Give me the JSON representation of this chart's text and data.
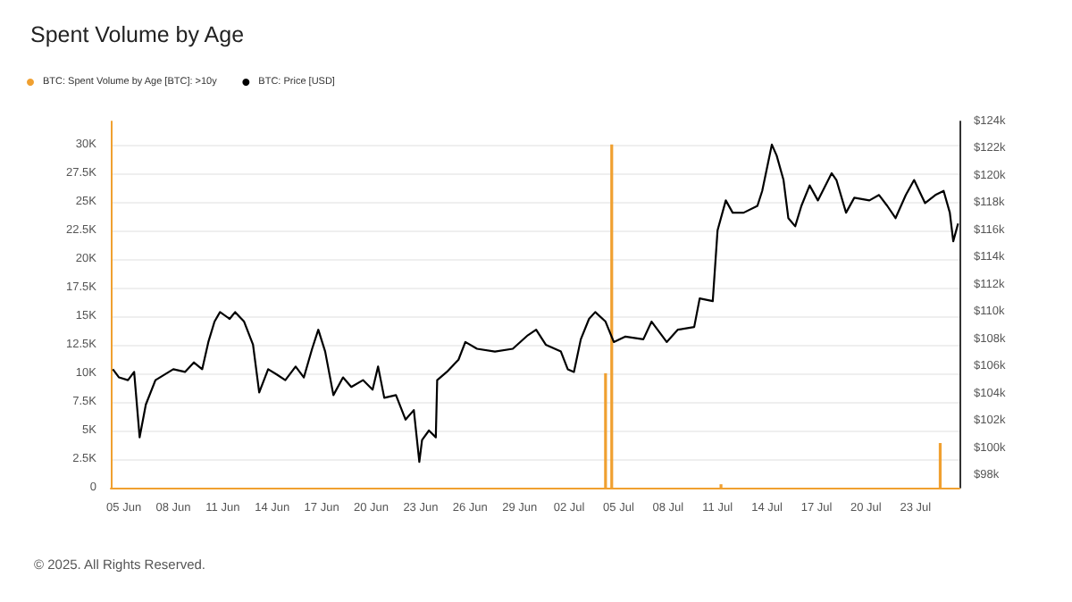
{
  "chart_data": {
    "type": "bar",
    "title": "Spent Volume by Age",
    "annotations": [
      "© 2025. All Rights Reserved."
    ],
    "legend": "top left",
    "grid": "y",
    "xlim": [
      "2025-06-04T05:00",
      "2025-07-25T16:00"
    ],
    "xticks": [
      {
        "value": "2025-06-05",
        "label": "05 Jun"
      },
      {
        "value": "2025-06-08",
        "label": "08 Jun"
      },
      {
        "value": "2025-06-11",
        "label": "11 Jun"
      },
      {
        "value": "2025-06-14",
        "label": "14 Jun"
      },
      {
        "value": "2025-06-17",
        "label": "17 Jun"
      },
      {
        "value": "2025-06-20",
        "label": "20 Jun"
      },
      {
        "value": "2025-06-23",
        "label": "23 Jun"
      },
      {
        "value": "2025-06-26",
        "label": "26 Jun"
      },
      {
        "value": "2025-06-29",
        "label": "29 Jun"
      },
      {
        "value": "2025-07-02",
        "label": "02 Jul"
      },
      {
        "value": "2025-07-05",
        "label": "05 Jul"
      },
      {
        "value": "2025-07-08",
        "label": "08 Jul"
      },
      {
        "value": "2025-07-11",
        "label": "11 Jul"
      },
      {
        "value": "2025-07-14",
        "label": "14 Jul"
      },
      {
        "value": "2025-07-17",
        "label": "17 Jul"
      },
      {
        "value": "2025-07-20",
        "label": "20 Jul"
      },
      {
        "value": "2025-07-23",
        "label": "23 Jul"
      }
    ],
    "ylim": [
      0,
      32000
    ],
    "yticks": [
      0,
      {
        "value": 2500,
        "label": "2.5K"
      },
      {
        "value": 5000,
        "label": "5K"
      },
      {
        "value": 7500,
        "label": "7.5K"
      },
      {
        "value": 10000,
        "label": "10K"
      },
      {
        "value": 12500,
        "label": "12.5K"
      },
      {
        "value": 15000,
        "label": "15K"
      },
      {
        "value": 17500,
        "label": "17.5K"
      },
      {
        "value": 20000,
        "label": "20K"
      },
      {
        "value": 22500,
        "label": "22.5K"
      },
      {
        "value": 25000,
        "label": "25K"
      },
      {
        "value": 27500,
        "label": "27.5K"
      },
      {
        "value": 30000,
        "label": "30K"
      }
    ],
    "y2lim": [
      97100,
      124000
    ],
    "y2ticks": [
      {
        "value": 98000,
        "label": "$98k"
      },
      {
        "value": 100000,
        "label": "$100k"
      },
      {
        "value": 102000,
        "label": "$102k"
      },
      {
        "value": 104000,
        "label": "$104k"
      },
      {
        "value": 106000,
        "label": "$106k"
      },
      {
        "value": 108000,
        "label": "$108k"
      },
      {
        "value": 110000,
        "label": "$110k"
      },
      {
        "value": 112000,
        "label": "$112k"
      },
      {
        "value": 114000,
        "label": "$114k"
      },
      {
        "value": 116000,
        "label": "$116k"
      },
      {
        "value": 118000,
        "label": "$118k"
      },
      {
        "value": 120000,
        "label": "$120k"
      },
      {
        "value": 122000,
        "label": "$122k"
      },
      {
        "value": 124000,
        "label": "$124k"
      }
    ],
    "series": [
      {
        "name": "BTC: Spent Volume by Age [BTC]: >10y",
        "color": "#f0a030",
        "x": [
          "2025-07-04T05:00",
          "2025-07-04T14:00",
          "2025-07-11T05:00",
          "2025-07-24T12:00"
        ],
        "values": [
          10000,
          30000,
          300,
          3900
        ]
      },
      {
        "name": "BTC: Price [USD]",
        "type": "line",
        "axis": "y2",
        "color": "#000000",
        "x": [
          "2025-06-04T08:00",
          "2025-06-04T17:00",
          "2025-06-05T06:00",
          "2025-06-05T15:00",
          "2025-06-05T23:00",
          "2025-06-06T08:00",
          "2025-06-06T22:00",
          "2025-06-08T00:00",
          "2025-06-08T17:00",
          "2025-06-09T06:00",
          "2025-06-09T18:00",
          "2025-06-10T03:00",
          "2025-06-10T12:00",
          "2025-06-10T20:00",
          "2025-06-11T10:00",
          "2025-06-11T18:00",
          "2025-06-12T07:00",
          "2025-06-12T20:00",
          "2025-06-13T05:00",
          "2025-06-13T18:00",
          "2025-06-14T07:00",
          "2025-06-14T19:00",
          "2025-06-15T10:00",
          "2025-06-15T22:00",
          "2025-06-16T10:00",
          "2025-06-16T19:00",
          "2025-06-17T05:00",
          "2025-06-17T17:00",
          "2025-06-18T07:00",
          "2025-06-18T19:00",
          "2025-06-19T12:00",
          "2025-06-20T02:00",
          "2025-06-20T10:00",
          "2025-06-20T19:00",
          "2025-06-21T12:00",
          "2025-06-22T02:00",
          "2025-06-22T14:00",
          "2025-06-22T22:00",
          "2025-06-23T02:00",
          "2025-06-23T12:00",
          "2025-06-23T22:00",
          "2025-06-24T00:00",
          "2025-06-24T14:00",
          "2025-06-25T07:00",
          "2025-06-25T17:00",
          "2025-06-26T10:00",
          "2025-06-27T12:00",
          "2025-06-28T14:00",
          "2025-06-29T12:00",
          "2025-06-30T00:00",
          "2025-06-30T14:00",
          "2025-07-01T12:00",
          "2025-07-01T22:00",
          "2025-07-02T07:00",
          "2025-07-02T17:00",
          "2025-07-03T05:00",
          "2025-07-03T14:00",
          "2025-07-04T05:00",
          "2025-07-04T17:00",
          "2025-07-05T10:00",
          "2025-07-06T12:00",
          "2025-07-07T00:00",
          "2025-07-07T22:00",
          "2025-07-08T14:00",
          "2025-07-09T14:00",
          "2025-07-09T22:00",
          "2025-07-10T17:00",
          "2025-07-11T00:00",
          "2025-07-11T12:00",
          "2025-07-11T22:00",
          "2025-07-12T14:00",
          "2025-07-13T10:00",
          "2025-07-13T17:00",
          "2025-07-14T07:00",
          "2025-07-14T14:00",
          "2025-07-15T00:00",
          "2025-07-15T07:00",
          "2025-07-15T17:00",
          "2025-07-16T02:00",
          "2025-07-16T14:00",
          "2025-07-17T02:00",
          "2025-07-17T22:00",
          "2025-07-18T05:00",
          "2025-07-18T19:00",
          "2025-07-19T07:00",
          "2025-07-20T05:00",
          "2025-07-20T19:00",
          "2025-07-21T07:00",
          "2025-07-21T19:00",
          "2025-07-22T10:00",
          "2025-07-22T22:00",
          "2025-07-23T14:00",
          "2025-07-24T05:00",
          "2025-07-24T17:00",
          "2025-07-25T02:00",
          "2025-07-25T07:00",
          "2025-07-25T14:00"
        ],
        "values": [
          105800,
          105200,
          105000,
          105600,
          100800,
          103200,
          105000,
          105800,
          105600,
          106300,
          105800,
          107800,
          109300,
          110000,
          109500,
          110000,
          109300,
          107600,
          104100,
          105800,
          105400,
          105000,
          106000,
          105200,
          107300,
          108700,
          107100,
          103900,
          105200,
          104500,
          105000,
          104300,
          106000,
          103700,
          103900,
          102100,
          102800,
          99000,
          100600,
          101300,
          100800,
          105000,
          105600,
          106500,
          107800,
          107300,
          107100,
          107300,
          108300,
          108700,
          107600,
          107100,
          105800,
          105600,
          108000,
          109500,
          110000,
          109300,
          107800,
          108200,
          108000,
          109300,
          107800,
          108700,
          108900,
          111000,
          110800,
          116000,
          118200,
          117300,
          117300,
          117800,
          118900,
          122300,
          121500,
          119700,
          116900,
          116300,
          117800,
          119300,
          118200,
          120200,
          119700,
          117300,
          118400,
          118200,
          118600,
          117800,
          116900,
          118600,
          119700,
          118000,
          118600,
          118900,
          117300,
          115200,
          116500
        ]
      }
    ]
  }
}
